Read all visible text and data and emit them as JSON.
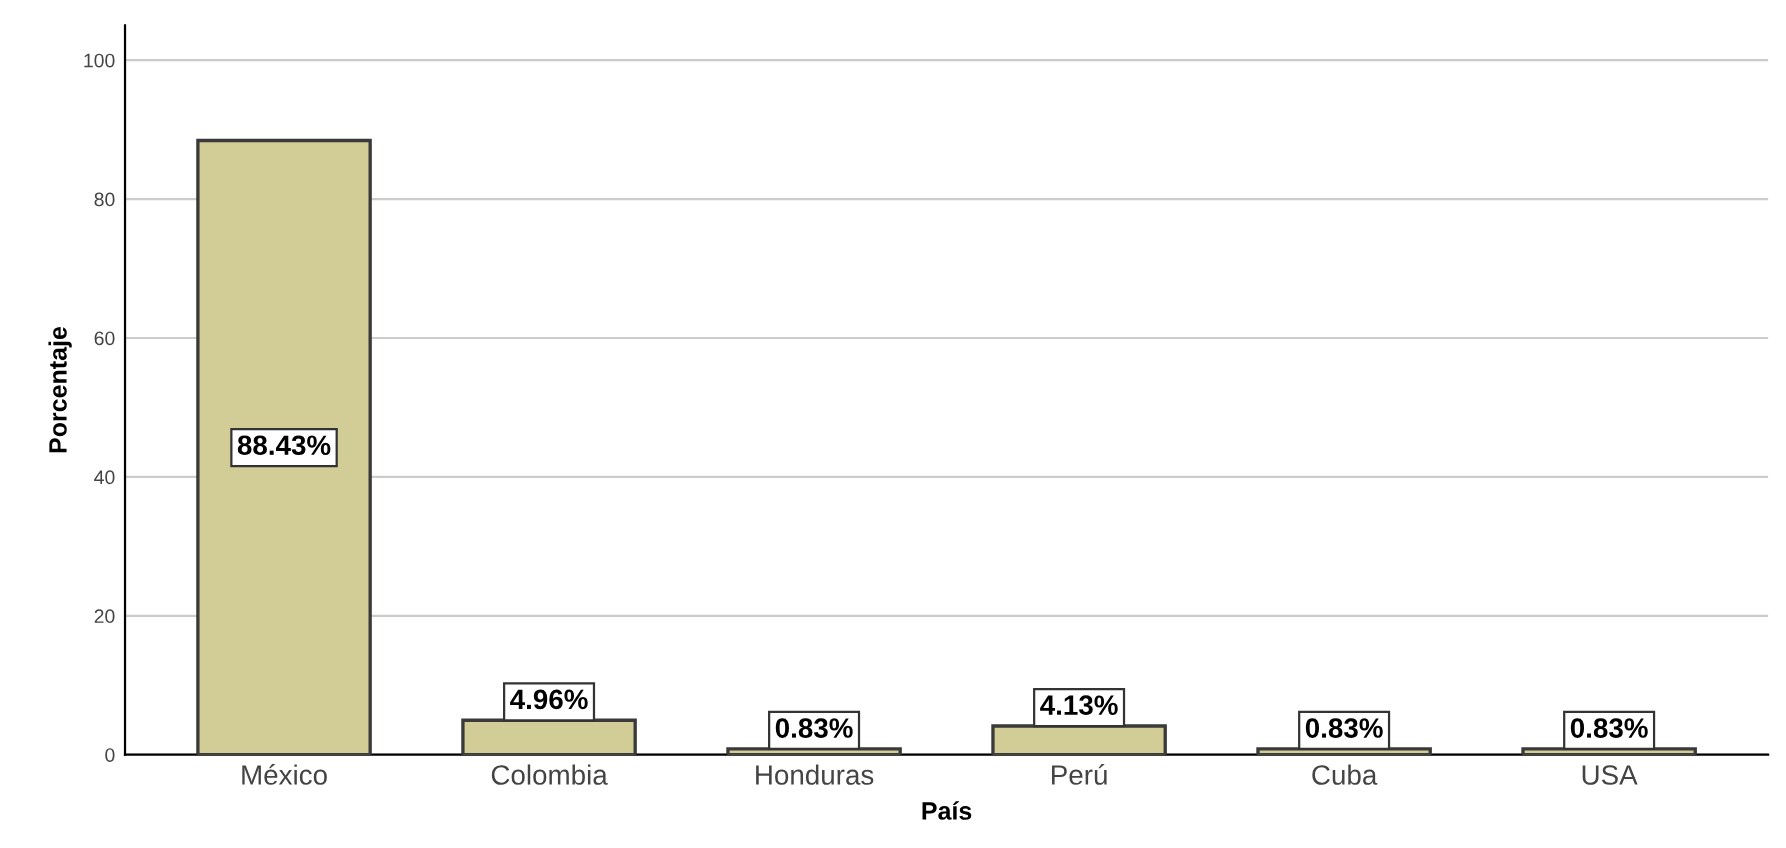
{
  "chart_data": {
    "type": "bar",
    "xlabel": "País",
    "ylabel": "Porcentaje",
    "categories": [
      "México",
      "Colombia",
      "Honduras",
      "Perú",
      "Cuba",
      "USA"
    ],
    "values": [
      88.43,
      4.96,
      0.83,
      4.13,
      0.83,
      0.83
    ],
    "value_labels": [
      "88.43%",
      "4.96%",
      "0.83%",
      "4.13%",
      "0.83%",
      "0.83%"
    ],
    "color": "#d2cc96",
    "ylim": [
      0,
      105
    ],
    "yticks": [
      0,
      20,
      40,
      60,
      80,
      100
    ],
    "grid": "y"
  }
}
